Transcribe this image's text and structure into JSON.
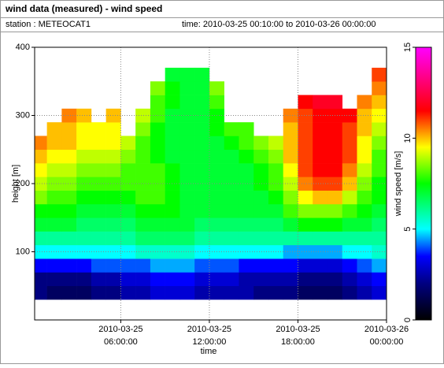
{
  "header": {
    "title": "wind data (measured) - wind speed",
    "station": "station : METEOCAT1",
    "period": "time: 2010-03-25 00:10:00 to 2010-03-26 00:00:00"
  },
  "chart_data": {
    "type": "heatmap",
    "x_label": "time",
    "y_label": "height [m]",
    "colorbar_label": "wind speed [m/s]",
    "xlim": [
      "2010-03-25 00:10:00",
      "2010-03-26 00:00:00"
    ],
    "xticks": [
      {
        "value": "2010-03-25 06:00:00",
        "label": [
          "2010-03-25",
          "06:00:00"
        ]
      },
      {
        "value": "2010-03-25 12:00:00",
        "label": [
          "2010-03-25",
          "12:00:00"
        ]
      },
      {
        "value": "2010-03-25 18:00:00",
        "label": [
          "2010-03-25",
          "18:00:00"
        ]
      },
      {
        "value": "2010-03-26 00:00:00",
        "label": [
          "2010-03-26",
          "00:00:00"
        ]
      }
    ],
    "ylim": [
      0,
      400
    ],
    "yticks": [
      100,
      200,
      300,
      400
    ],
    "clim": [
      0,
      15
    ],
    "cticks": [
      0,
      5,
      10,
      15
    ],
    "colorscale": [
      [
        0,
        "#000000"
      ],
      [
        2,
        "#000080"
      ],
      [
        3.5,
        "#0000ff"
      ],
      [
        5,
        "#00ffff"
      ],
      [
        7.5,
        "#00ff00"
      ],
      [
        9.5,
        "#ffff00"
      ],
      [
        11.5,
        "#ff0000"
      ],
      [
        15,
        "#ff00ff"
      ]
    ],
    "grid": true,
    "x": [
      "2010-03-25 00:30:00",
      "2010-03-25 01:30:00",
      "2010-03-25 02:30:00",
      "2010-03-25 03:30:00",
      "2010-03-25 04:30:00",
      "2010-03-25 05:30:00",
      "2010-03-25 06:30:00",
      "2010-03-25 07:30:00",
      "2010-03-25 08:30:00",
      "2010-03-25 09:30:00",
      "2010-03-25 10:30:00",
      "2010-03-25 11:30:00",
      "2010-03-25 12:30:00",
      "2010-03-25 13:30:00",
      "2010-03-25 14:30:00",
      "2010-03-25 15:30:00",
      "2010-03-25 16:30:00",
      "2010-03-25 17:30:00",
      "2010-03-25 18:30:00",
      "2010-03-25 19:30:00",
      "2010-03-25 20:30:00",
      "2010-03-25 21:30:00",
      "2010-03-25 22:30:00",
      "2010-03-25 23:30:00"
    ],
    "y": [
      40,
      60,
      80,
      100,
      120,
      140,
      160,
      180,
      200,
      220,
      240,
      260,
      280,
      300,
      320,
      340,
      360
    ],
    "values": [
      [
        2,
        1.5,
        1.5,
        1.5,
        2,
        2,
        2.5,
        2.5,
        3,
        3,
        3,
        2.5,
        2.5,
        2.5,
        2.5,
        2,
        2,
        2,
        1.5,
        1.5,
        1.5,
        2,
        2.5,
        3
      ],
      [
        2,
        2,
        2,
        2,
        2.5,
        2.5,
        3,
        3,
        3.5,
        3.5,
        3.5,
        3,
        3,
        3,
        2.5,
        2.5,
        2.5,
        2.5,
        2,
        2,
        2,
        2.5,
        3,
        3.5
      ],
      [
        3.5,
        3.5,
        3.5,
        3.5,
        4,
        4,
        4,
        4,
        4.5,
        4.5,
        4.5,
        4,
        4,
        4,
        3.5,
        3.5,
        3.5,
        3.5,
        3,
        3,
        3,
        3.5,
        4,
        4.5
      ],
      [
        5,
        5,
        5,
        5,
        5,
        5,
        5,
        5.5,
        5.5,
        5.5,
        5.5,
        5,
        5,
        5,
        5,
        5,
        5,
        4.5,
        4.5,
        4.5,
        4.5,
        5,
        5,
        5.5
      ],
      [
        6,
        6,
        6,
        6,
        6,
        6,
        6,
        6.5,
        6.5,
        6.5,
        6.5,
        6,
        6,
        6,
        6,
        6,
        6,
        6,
        6,
        6,
        6,
        6,
        6,
        6
      ],
      [
        7,
        7,
        7,
        6.5,
        6.5,
        6.5,
        6.5,
        7,
        7,
        7,
        7,
        6.5,
        6.5,
        6.5,
        6.5,
        6.5,
        6.5,
        7,
        7.5,
        7.5,
        7.5,
        7,
        7,
        6.5
      ],
      [
        7.5,
        7.5,
        7.5,
        7,
        7,
        7,
        7,
        7.5,
        7.5,
        7.5,
        7,
        7,
        7,
        7,
        7,
        7,
        7,
        8,
        8.5,
        8.5,
        8.5,
        8,
        7.5,
        7
      ],
      [
        8.5,
        8,
        8,
        7.5,
        7.5,
        7.5,
        7.5,
        8,
        8,
        7.5,
        7,
        7,
        7,
        7,
        7,
        7,
        7.5,
        8.5,
        9.5,
        10,
        10,
        9,
        8,
        7.5
      ],
      [
        9,
        8.5,
        8.5,
        8,
        8,
        8,
        8,
        8,
        8,
        7.5,
        7,
        7,
        7,
        7,
        7,
        7.5,
        8,
        9,
        10.5,
        11,
        11,
        10,
        8.5,
        7.5
      ],
      [
        9.5,
        9,
        9,
        8.5,
        8.5,
        8.5,
        8,
        8,
        8,
        7.5,
        7,
        7,
        7,
        7,
        7,
        7.5,
        8,
        9.5,
        11,
        11.5,
        11.5,
        10.5,
        9,
        8
      ],
      [
        10,
        9.5,
        9.5,
        9,
        9,
        9,
        8.5,
        8,
        7.5,
        7,
        7,
        7,
        7,
        7,
        7.5,
        8,
        8.5,
        10,
        11,
        11.5,
        11.5,
        11,
        9.5,
        8
      ],
      [
        10.5,
        10,
        10,
        9.5,
        9.5,
        9.5,
        9,
        8,
        7.5,
        7,
        7,
        7,
        7,
        7.5,
        8,
        8.5,
        9,
        10,
        11,
        11.5,
        11.5,
        11,
        9.5,
        8.5
      ],
      [
        null,
        10,
        10,
        9.5,
        9.5,
        9.5,
        null,
        8.5,
        7.5,
        7,
        7,
        7,
        7.5,
        8,
        8,
        null,
        null,
        10,
        11,
        11.5,
        11.5,
        11,
        10,
        9
      ],
      [
        null,
        null,
        10.5,
        10,
        null,
        10,
        null,
        9,
        8,
        7,
        7,
        7,
        7.5,
        null,
        null,
        null,
        null,
        10.5,
        11,
        11.5,
        11.5,
        11.5,
        10,
        9.5
      ],
      [
        null,
        null,
        null,
        null,
        null,
        null,
        null,
        null,
        8,
        7.5,
        7,
        7,
        8,
        null,
        null,
        null,
        null,
        null,
        11.5,
        12,
        12,
        null,
        10.5,
        10
      ],
      [
        null,
        null,
        null,
        null,
        null,
        null,
        null,
        null,
        8.5,
        7.5,
        7,
        7,
        8.5,
        null,
        null,
        null,
        null,
        null,
        null,
        null,
        null,
        null,
        null,
        10.5
      ],
      [
        null,
        null,
        null,
        null,
        null,
        null,
        null,
        null,
        null,
        7,
        7,
        7,
        null,
        null,
        null,
        null,
        null,
        null,
        null,
        null,
        null,
        null,
        null,
        11
      ]
    ]
  }
}
